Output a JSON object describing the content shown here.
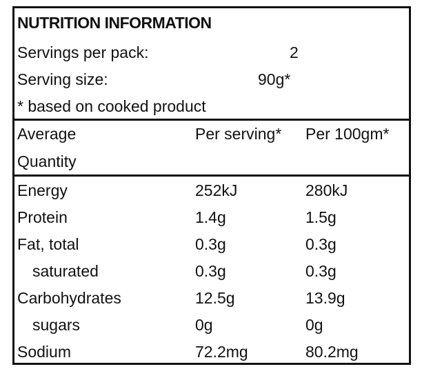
{
  "title": "NUTRITION INFORMATION",
  "servings": {
    "label": "Servings per pack:",
    "value": "2"
  },
  "serving_size": {
    "label": "Serving size:",
    "value": "90g*"
  },
  "note": "* based on cooked product",
  "header": {
    "col1_line1": "Average",
    "col1_line2": "Quantity",
    "col2": "Per serving*",
    "col3": "Per 100gm*"
  },
  "rows": [
    {
      "name": "Energy",
      "per_serving": "252kJ",
      "per_100": "280kJ"
    },
    {
      "name": "Protein",
      "per_serving": "1.4g",
      "per_100": "1.5g"
    },
    {
      "name": "Fat, total",
      "per_serving": "0.3g",
      "per_100": "0.3g"
    },
    {
      "name": "saturated",
      "per_serving": "0.3g",
      "per_100": "0.3g"
    },
    {
      "name": "Carbohydrates",
      "per_serving": "12.5g",
      "per_100": "13.9g"
    },
    {
      "name": "sugars",
      "per_serving": "0g",
      "per_100": "0g"
    },
    {
      "name": "Sodium",
      "per_serving": "72.2mg",
      "per_100": "80.2mg"
    }
  ]
}
